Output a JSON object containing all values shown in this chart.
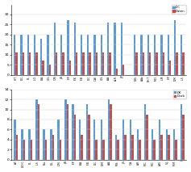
{
  "top_chart": {
    "ylim": [
      0,
      35
    ],
    "yticks": [
      0,
      5,
      10,
      15,
      20,
      25,
      30
    ],
    "legend_labels": [
      "DC",
      "Daten"
    ],
    "bar_color_blue": "#5B9BD5",
    "bar_color_red": "#C0504D",
    "categories": [
      "H.T.",
      "D.C.",
      "F.L.",
      "L.O.",
      "B.A.",
      "O.S.",
      "C.M.",
      "J.B.",
      "E.P.",
      "E.K.",
      "E.B.",
      "D.C.",
      "C.Al.",
      "O.S.",
      "A.A.",
      "Al.R.",
      "J.P.",
      "",
      "D.Ki.",
      "A.Av.",
      "P.H.T.",
      "M.O.",
      "L.M.",
      "E.P.",
      "D.M.",
      "L.S."
    ],
    "blue_values": [
      20,
      20,
      20,
      20,
      18,
      20,
      26,
      20,
      27,
      26,
      20,
      20,
      20,
      20,
      26,
      26,
      26,
      0,
      20,
      20,
      20,
      20,
      20,
      20,
      27,
      20
    ],
    "red_values": [
      11,
      11,
      11,
      11,
      7,
      5,
      11,
      11,
      7,
      11,
      11,
      11,
      11,
      11,
      11,
      3,
      5,
      0,
      11,
      11,
      11,
      11,
      11,
      7,
      11,
      11
    ]
  },
  "bottom_chart": {
    "ylim": [
      0,
      14
    ],
    "yticks": [
      0,
      2,
      4,
      6,
      8,
      10,
      12,
      14
    ],
    "legend_labels": [
      "DK",
      "Dcab"
    ],
    "bar_color_blue": "#5B9BD5",
    "bar_color_red": "#C0504D",
    "categories": [
      "A.T.",
      "D.O.C.",
      "F.L.",
      "L.S.",
      "B.a.",
      "D.L.",
      "C.M.",
      "J.B.",
      "E.P.",
      "B.A.",
      "E.B.",
      "D.C.",
      "D.M.",
      "A.A.",
      "M.S.",
      "J.S.",
      "C.A.",
      "A.R.",
      "M.C.",
      "M.C.",
      "A.M.",
      "S.J.",
      "M.M.",
      "J."
    ],
    "blue_values": [
      8,
      6,
      6,
      12,
      6,
      6,
      8,
      12,
      11,
      8,
      11,
      8,
      8,
      12,
      5,
      8,
      8,
      6,
      11,
      6,
      8,
      6,
      6,
      11
    ],
    "red_values": [
      5,
      4,
      4,
      11,
      4,
      5,
      4,
      11,
      9,
      5,
      9,
      4,
      4,
      11,
      4,
      5,
      5,
      4,
      9,
      4,
      5,
      5,
      4,
      9
    ]
  },
  "fig_width": 2.37,
  "fig_height": 2.13,
  "dpi": 100
}
